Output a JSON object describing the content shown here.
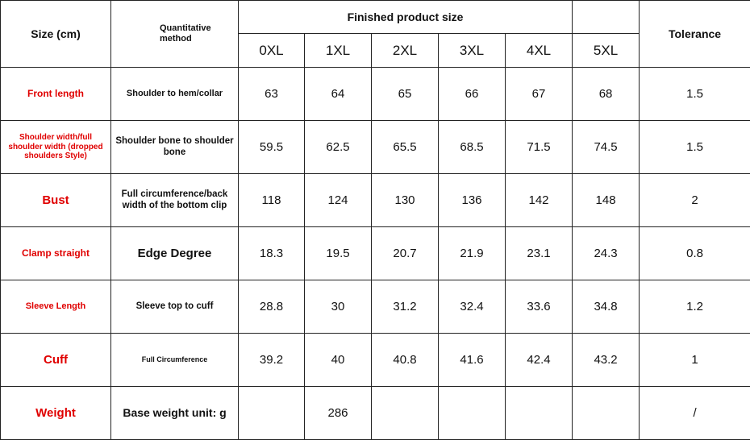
{
  "header": {
    "size": "Size (cm)",
    "method": "Quantitative method",
    "finished": "Finished product size",
    "tolerance": "Tolerance",
    "sizes": [
      "0XL",
      "1XL",
      "2XL",
      "3XL",
      "4XL",
      "5XL"
    ]
  },
  "rows": [
    {
      "label": "Front length",
      "method": "Shoulder to hem/collar",
      "values": [
        "63",
        "64",
        "65",
        "66",
        "67",
        "68"
      ],
      "tolerance": "1.5"
    },
    {
      "label": "Shoulder width/full shoulder width (dropped shoulders Style)",
      "method": "Shoulder bone to shoulder bone",
      "values": [
        "59.5",
        "62.5",
        "65.5",
        "68.5",
        "71.5",
        "74.5"
      ],
      "tolerance": "1.5"
    },
    {
      "label": "Bust",
      "method": "Full circumference/back width of the bottom clip",
      "values": [
        "118",
        "124",
        "130",
        "136",
        "142",
        "148"
      ],
      "tolerance": "2"
    },
    {
      "label": "Clamp straight",
      "method": "Edge Degree",
      "values": [
        "18.3",
        "19.5",
        "20.7",
        "21.9",
        "23.1",
        "24.3"
      ],
      "tolerance": "0.8"
    },
    {
      "label": "Sleeve Length",
      "method": "Sleeve top to cuff",
      "values": [
        "28.8",
        "30",
        "31.2",
        "32.4",
        "33.6",
        "34.8"
      ],
      "tolerance": "1.2"
    },
    {
      "label": "Cuff",
      "method": "Full Circumference",
      "values": [
        "39.2",
        "40",
        "40.8",
        "41.6",
        "42.4",
        "43.2"
      ],
      "tolerance": "1"
    },
    {
      "label": "Weight",
      "method": "Base weight unit: g",
      "values": [
        null,
        "286",
        null,
        null,
        null,
        null
      ],
      "tolerance": "/"
    }
  ]
}
